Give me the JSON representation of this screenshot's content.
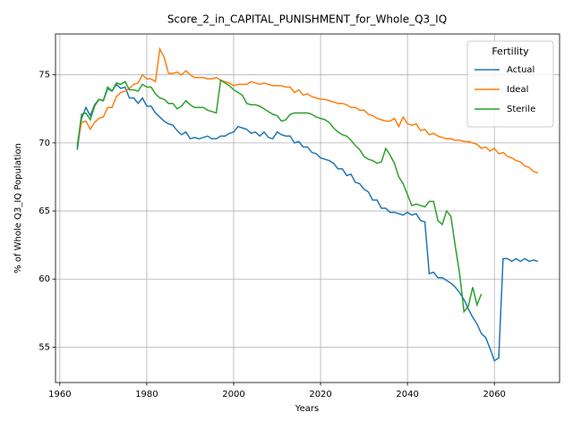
{
  "chart_data": {
    "type": "line",
    "title": "Score_2_in_CAPITAL_PUNISHMENT_for_Whole_Q3_IQ",
    "x_label": "Years",
    "y_label": "% of Whole Q3_IQ Population",
    "legend_title": "Fertility",
    "legend": "upper right",
    "grid": true,
    "xlim": [
      1959,
      2075
    ],
    "ylim": [
      52.4,
      78.0
    ],
    "xticks": [
      1960,
      1980,
      2000,
      2020,
      2040,
      2060
    ],
    "yticks": [
      55,
      60,
      65,
      70,
      75
    ],
    "x": [
      1964,
      1965,
      1966,
      1967,
      1968,
      1969,
      1970,
      1971,
      1972,
      1973,
      1974,
      1975,
      1976,
      1977,
      1978,
      1979,
      1980,
      1981,
      1982,
      1983,
      1984,
      1985,
      1986,
      1987,
      1988,
      1989,
      1990,
      1991,
      1992,
      1993,
      1994,
      1995,
      1996,
      1997,
      1998,
      1999,
      2000,
      2001,
      2002,
      2003,
      2004,
      2005,
      2006,
      2007,
      2008,
      2009,
      2010,
      2011,
      2012,
      2013,
      2014,
      2015,
      2016,
      2017,
      2018,
      2019,
      2020,
      2021,
      2022,
      2023,
      2024,
      2025,
      2026,
      2027,
      2028,
      2029,
      2030,
      2031,
      2032,
      2033,
      2034,
      2035,
      2036,
      2037,
      2038,
      2039,
      2040,
      2041,
      2042,
      2043,
      2044,
      2045,
      2046,
      2047,
      2048,
      2049,
      2050,
      2051,
      2052,
      2053,
      2054,
      2055,
      2056,
      2057,
      2058,
      2059,
      2060,
      2061,
      2062,
      2063,
      2064,
      2065,
      2066,
      2067,
      2068,
      2069,
      2070
    ],
    "series": [
      {
        "name": "Actual",
        "color": "#1f77b4",
        "values": [
          69.5,
          71.8,
          72.6,
          72.0,
          72.8,
          73.2,
          73.1,
          74.0,
          73.8,
          74.3,
          74.0,
          74.1,
          73.3,
          73.3,
          72.9,
          73.3,
          72.7,
          72.7,
          72.2,
          71.9,
          71.6,
          71.4,
          71.3,
          70.9,
          70.6,
          70.8,
          70.3,
          70.4,
          70.3,
          70.4,
          70.5,
          70.3,
          70.3,
          70.5,
          70.5,
          70.7,
          70.8,
          71.2,
          71.1,
          71.0,
          70.7,
          70.8,
          70.5,
          70.8,
          70.4,
          70.3,
          70.8,
          70.6,
          70.5,
          70.5,
          70.0,
          70.1,
          69.7,
          69.7,
          69.3,
          69.2,
          68.9,
          68.8,
          68.7,
          68.5,
          68.1,
          68.1,
          67.6,
          67.7,
          67.1,
          67.0,
          66.6,
          66.4,
          65.8,
          65.8,
          65.2,
          65.2,
          64.9,
          64.9,
          64.8,
          64.7,
          64.9,
          64.7,
          64.8,
          64.3,
          64.2,
          60.4,
          60.5,
          60.1,
          60.1,
          59.9,
          59.7,
          59.4,
          59.0,
          58.5,
          57.8,
          57.2,
          56.7,
          56.0,
          55.7,
          54.9,
          54.0,
          54.2,
          61.5,
          61.5,
          61.3,
          61.5,
          61.3,
          61.5,
          61.3,
          61.4,
          61.3
        ]
      },
      {
        "name": "Ideal",
        "color": "#ff7f0e",
        "values": [
          69.9,
          71.5,
          71.6,
          71.0,
          71.5,
          71.8,
          71.9,
          72.6,
          72.6,
          73.4,
          73.7,
          73.8,
          74.0,
          74.3,
          74.4,
          75.0,
          74.7,
          74.7,
          74.5,
          76.9,
          76.3,
          75.1,
          75.1,
          75.2,
          75.0,
          75.3,
          75.0,
          74.8,
          74.8,
          74.8,
          74.7,
          74.7,
          74.8,
          74.6,
          74.5,
          74.4,
          74.2,
          74.3,
          74.3,
          74.3,
          74.5,
          74.4,
          74.3,
          74.4,
          74.3,
          74.2,
          74.2,
          74.2,
          74.1,
          74.1,
          73.7,
          73.9,
          73.5,
          73.6,
          73.4,
          73.3,
          73.2,
          73.2,
          73.1,
          73.0,
          72.9,
          72.9,
          72.8,
          72.6,
          72.6,
          72.4,
          72.4,
          72.1,
          72.0,
          71.8,
          71.7,
          71.6,
          71.6,
          71.8,
          71.2,
          71.9,
          71.4,
          71.3,
          71.4,
          70.9,
          71.0,
          70.6,
          70.7,
          70.5,
          70.4,
          70.3,
          70.3,
          70.2,
          70.2,
          70.1,
          70.1,
          70.0,
          69.9,
          69.6,
          69.7,
          69.4,
          69.6,
          69.2,
          69.3,
          69.0,
          68.9,
          68.7,
          68.6,
          68.3,
          68.2,
          67.9,
          67.8
        ]
      },
      {
        "name": "Sterile",
        "color": "#2ca02c",
        "values": [
          69.7,
          72.1,
          72.2,
          71.7,
          72.7,
          73.2,
          73.1,
          74.1,
          73.8,
          74.4,
          74.3,
          74.5,
          73.9,
          73.9,
          73.8,
          74.3,
          74.1,
          74.1,
          73.6,
          73.3,
          73.2,
          72.9,
          72.9,
          72.5,
          72.7,
          73.1,
          72.8,
          72.6,
          72.6,
          72.6,
          72.4,
          72.3,
          72.2,
          74.6,
          74.4,
          74.2,
          73.9,
          73.7,
          73.5,
          72.9,
          72.8,
          72.8,
          72.7,
          72.5,
          72.3,
          72.1,
          72.0,
          71.6,
          71.7,
          72.1,
          72.2,
          72.2,
          72.2,
          72.2,
          72.1,
          71.9,
          71.8,
          71.7,
          71.5,
          71.1,
          70.8,
          70.6,
          70.5,
          70.2,
          69.8,
          69.5,
          69.0,
          68.8,
          68.7,
          68.5,
          68.6,
          69.6,
          69.1,
          68.5,
          67.5,
          67.0,
          66.2,
          65.4,
          65.5,
          65.4,
          65.3,
          65.7,
          65.7,
          64.3,
          64.0,
          65.0,
          64.6,
          62.4,
          60.4,
          57.6,
          58.0,
          59.4,
          58.1,
          58.9,
          null,
          null,
          null,
          null,
          null,
          null,
          null,
          null,
          null,
          null,
          null,
          null,
          null
        ]
      }
    ]
  }
}
